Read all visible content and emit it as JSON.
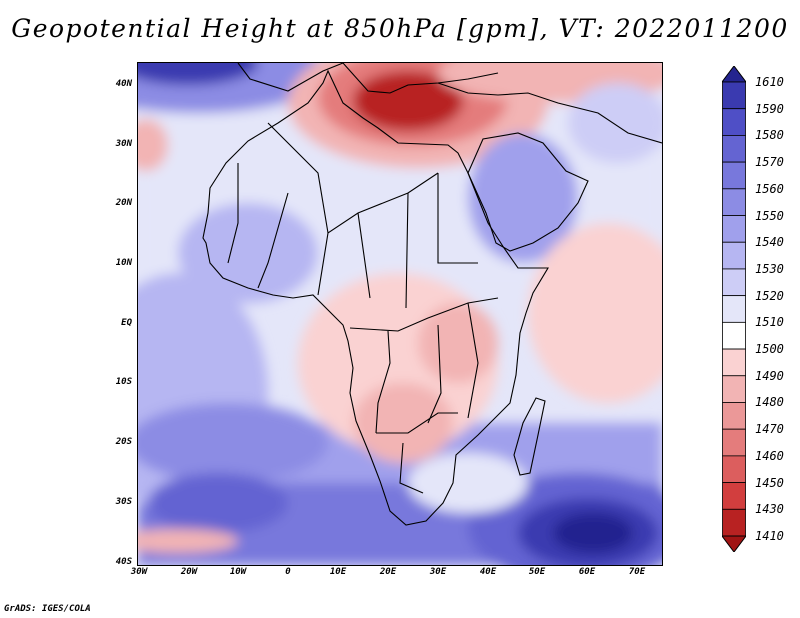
{
  "title": "Geopotential Height at 850hPa [gpm], VT: 2022011200",
  "credit": "GrADS: IGES/COLA",
  "latitude_labels": [
    "40N",
    "30N",
    "20N",
    "10N",
    "EQ",
    "10S",
    "20S",
    "30S",
    "40S"
  ],
  "longitude_labels": [
    "30W",
    "20W",
    "10W",
    "0",
    "10E",
    "20E",
    "30E",
    "40E",
    "50E",
    "60E",
    "70E"
  ],
  "colorbar": {
    "levels": [
      "1610",
      "1590",
      "1580",
      "1570",
      "1560",
      "1550",
      "1540",
      "1530",
      "1520",
      "1510",
      "1500",
      "1490",
      "1480",
      "1470",
      "1460",
      "1450",
      "1430",
      "1410"
    ],
    "colors": [
      "#24248f",
      "#3a3ab0",
      "#4f4fc6",
      "#6464d2",
      "#7878dc",
      "#8c8ce4",
      "#a0a0ec",
      "#b6b6f2",
      "#cdcdf6",
      "#e4e6f9",
      "#ffffff",
      "#fad2d2",
      "#f2b4b4",
      "#eb9898",
      "#e47c7c",
      "#dc5e5e",
      "#d23e3e",
      "#b82222",
      "#a01414"
    ]
  },
  "chart_data": {
    "type": "heatmap",
    "title": "Geopotential Height at 850hPa [gpm], VT: 2022011200",
    "variable": "Geopotential Height at 850hPa",
    "units": "gpm",
    "valid_time": "2022011200",
    "lon_range": [
      -30,
      75
    ],
    "lat_range": [
      -40,
      45
    ],
    "x_ticks": [
      "30W",
      "20W",
      "10W",
      "0",
      "10E",
      "20E",
      "30E",
      "40E",
      "50E",
      "60E",
      "70E"
    ],
    "y_ticks": [
      "40N",
      "30N",
      "20N",
      "10N",
      "EQ",
      "10S",
      "20S",
      "30S",
      "40S"
    ],
    "color_levels": [
      1610,
      1590,
      1580,
      1570,
      1560,
      1550,
      1540,
      1530,
      1520,
      1510,
      1500,
      1490,
      1480,
      1470,
      1460,
      1450,
      1430,
      1410
    ],
    "features": [
      {
        "name": "low",
        "lon": 23,
        "lat": 38,
        "value": 1430
      },
      {
        "name": "low",
        "lon": -30,
        "lat": 30,
        "value": 1480
      },
      {
        "name": "low",
        "lon": 22,
        "lat": -16,
        "value": 1480
      },
      {
        "name": "high",
        "lon": -20,
        "lat": 43,
        "value": 1580
      },
      {
        "name": "high",
        "lon": 60,
        "lat": -36,
        "value": 1590
      },
      {
        "name": "high",
        "lon": 45,
        "lat": 22,
        "value": 1550
      },
      {
        "name": "high",
        "lon": -25,
        "lat": -24,
        "value": 1560
      }
    ]
  }
}
